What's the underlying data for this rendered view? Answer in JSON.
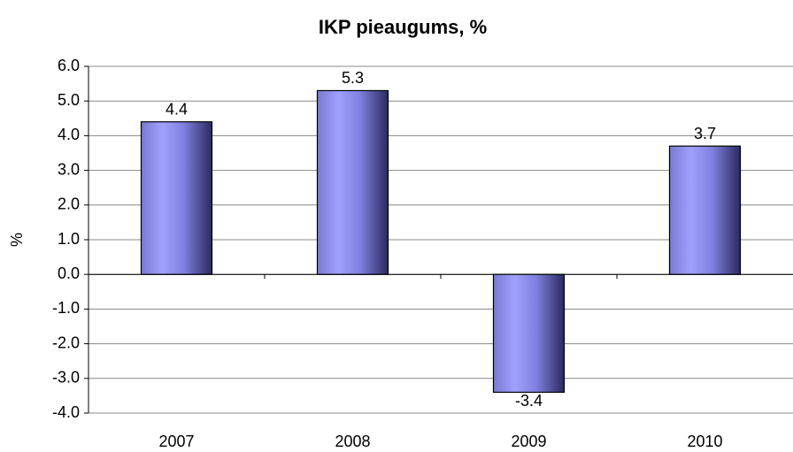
{
  "chart_data": {
    "type": "bar",
    "title": "IKP pieaugums, %",
    "y_label": "%",
    "categories": [
      "2007",
      "2008",
      "2009",
      "2010"
    ],
    "values": [
      4.4,
      5.3,
      -3.4,
      3.7
    ],
    "color": "#9999ff",
    "ylim": [
      -4,
      6
    ],
    "yticks": [
      {
        "value": -4,
        "label": "-4.0"
      },
      {
        "value": -3,
        "label": "-3.0"
      },
      {
        "value": -2,
        "label": "-2.0"
      },
      {
        "value": -1,
        "label": "-1.0"
      },
      {
        "value": 0,
        "label": "0.0"
      },
      {
        "value": 1,
        "label": "1.0"
      },
      {
        "value": 2,
        "label": "2.0"
      },
      {
        "value": 3,
        "label": "3.0"
      },
      {
        "value": 4,
        "label": "4.0"
      },
      {
        "value": 5,
        "label": "5.0"
      },
      {
        "value": 6,
        "label": "6.0"
      }
    ],
    "grid": true
  }
}
